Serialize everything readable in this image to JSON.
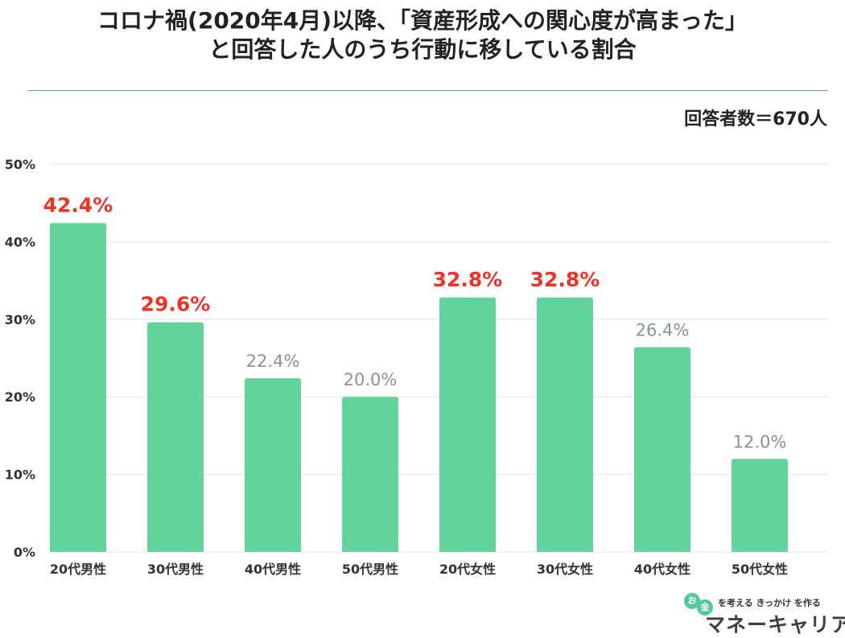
{
  "title_line1": "コロナ禍(2020年4月)以降、「資産形成への関心度が高まった」",
  "title_line2": "と回答した人のうち行動に移している割合",
  "respondents": "回答者数＝670人",
  "logo": {
    "tagline": "を考える きっかけ を作る",
    "circle1": "お",
    "circle2": "金",
    "name": "マネーキャリア"
  },
  "colors": {
    "bar": "#62d39b",
    "highlight_label": "#ee3326",
    "normal_label": "#86958f",
    "grid": "#e3e3e3",
    "axis_text": "#333333"
  },
  "chart_data": {
    "type": "bar",
    "title": "コロナ禍(2020年4月)以降、「資産形成への関心度が高まった」と回答した人のうち行動に移している割合",
    "categories": [
      "20代男性",
      "30代男性",
      "40代男性",
      "50代男性",
      "20代女性",
      "30代女性",
      "40代女性",
      "50代女性"
    ],
    "values": [
      42.4,
      29.6,
      22.4,
      20.0,
      32.8,
      32.8,
      26.4,
      12.0
    ],
    "value_labels": [
      "42.4%",
      "29.6%",
      "22.4%",
      "20.0%",
      "32.8%",
      "32.8%",
      "26.4%",
      "12.0%"
    ],
    "highlighted": [
      true,
      true,
      false,
      false,
      true,
      true,
      false,
      false
    ],
    "yticks": [
      0,
      10,
      20,
      30,
      40,
      50
    ],
    "ytick_labels": [
      "0%",
      "10%",
      "20%",
      "30%",
      "40%",
      "50%"
    ],
    "ylim": [
      0,
      50
    ],
    "xlabel": "",
    "ylabel": "",
    "grid": true
  }
}
